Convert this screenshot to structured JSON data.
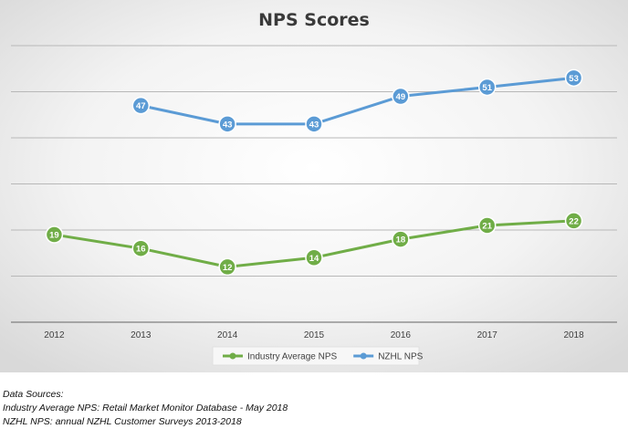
{
  "chart_data": {
    "type": "line",
    "title": "NPS Scores",
    "categories": [
      "2012",
      "2013",
      "2014",
      "2015",
      "2016",
      "2017",
      "2018"
    ],
    "ylim": [
      0,
      60
    ],
    "grid": true,
    "legend_position": "bottom",
    "series": [
      {
        "name": "Industry Average NPS",
        "color": "#70ad47",
        "values": [
          19,
          16,
          12,
          14,
          18,
          21,
          22
        ]
      },
      {
        "name": "NZHL NPS",
        "color": "#5b9bd5",
        "values": [
          null,
          47,
          43,
          43,
          49,
          51,
          53
        ]
      }
    ]
  },
  "sources": {
    "heading": "Data Sources:",
    "line1": "Industry Average NPS: Retail Market Monitor Database - May 2018",
    "line2": "NZHL NPS: annual NZHL Customer Surveys 2013-2018"
  }
}
